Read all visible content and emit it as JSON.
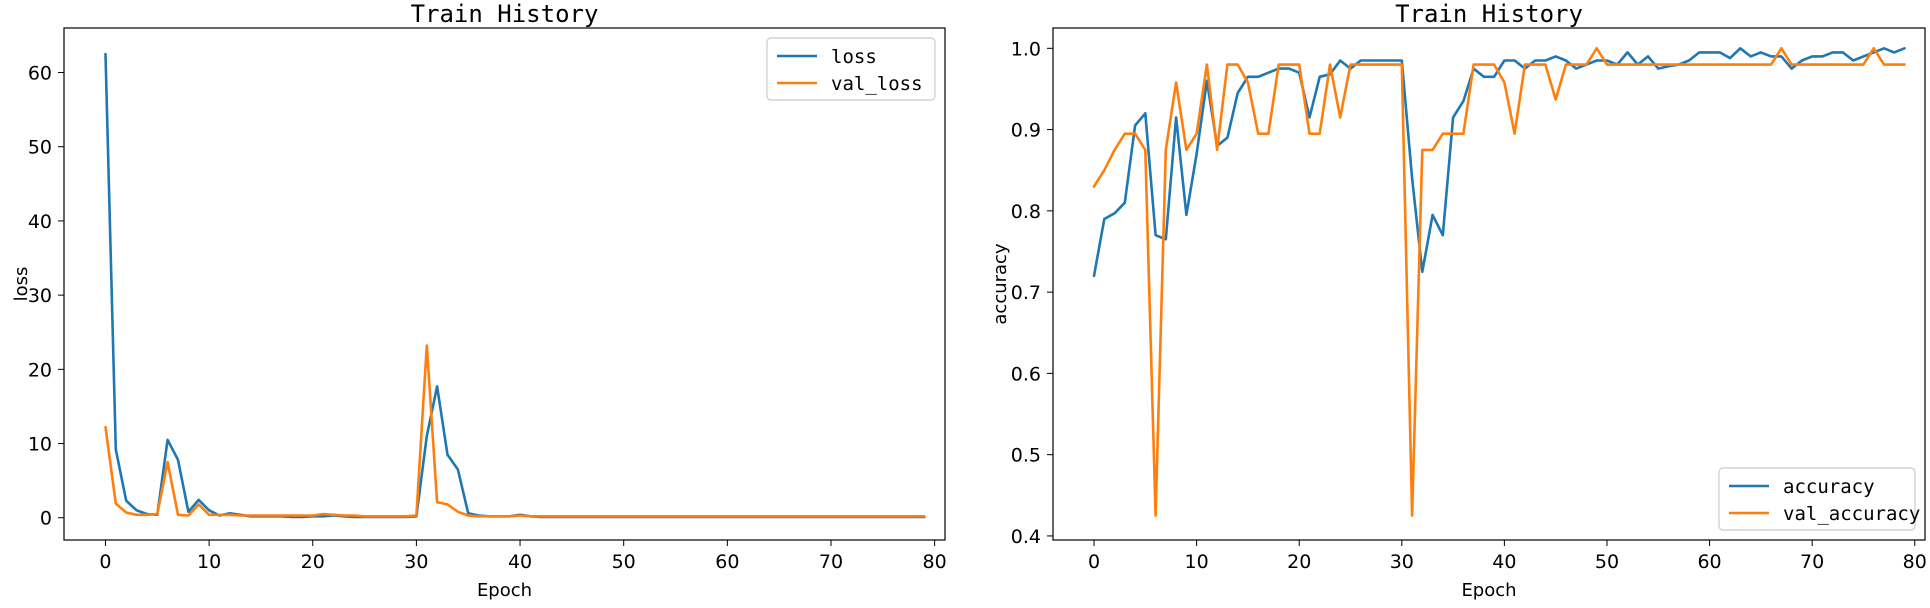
{
  "colors": {
    "series1": "#1f77b4",
    "series2": "#ff7f0e",
    "frame": "#000000"
  },
  "chart_data": [
    {
      "type": "line",
      "title": "Train History",
      "xlabel": "Epoch",
      "ylabel": "loss",
      "xlim": [
        -4,
        81
      ],
      "ylim": [
        -3,
        66
      ],
      "xticks": [
        0,
        10,
        20,
        30,
        40,
        50,
        60,
        70,
        80
      ],
      "yticks": [
        0,
        10,
        20,
        30,
        40,
        50,
        60
      ],
      "legend_position": "top-right",
      "series": [
        {
          "name": "loss",
          "color": "#1f77b4",
          "x": [
            0,
            1,
            2,
            3,
            4,
            5,
            6,
            7,
            8,
            9,
            10,
            11,
            12,
            13,
            14,
            15,
            16,
            17,
            18,
            19,
            20,
            21,
            22,
            23,
            24,
            25,
            26,
            27,
            28,
            29,
            30,
            31,
            32,
            33,
            34,
            35,
            36,
            37,
            38,
            39,
            40,
            41,
            42,
            43,
            44,
            45,
            46,
            47,
            48,
            49,
            50,
            51,
            52,
            53,
            54,
            55,
            56,
            57,
            58,
            59,
            60,
            61,
            62,
            63,
            64,
            65,
            66,
            67,
            68,
            69,
            70,
            71,
            72,
            73,
            74,
            75,
            76,
            77,
            78,
            79
          ],
          "values": [
            62.5,
            9.2,
            2.3,
            1.0,
            0.5,
            0.4,
            10.5,
            7.8,
            0.8,
            2.4,
            1.0,
            0.3,
            0.6,
            0.4,
            0.2,
            0.2,
            0.2,
            0.2,
            0.1,
            0.1,
            0.2,
            0.2,
            0.3,
            0.2,
            0.1,
            0.1,
            0.1,
            0.1,
            0.1,
            0.1,
            0.2,
            11.0,
            17.7,
            8.5,
            6.5,
            0.6,
            0.3,
            0.2,
            0.2,
            0.2,
            0.4,
            0.2,
            0.1,
            0.1,
            0.1,
            0.1,
            0.1,
            0.1,
            0.1,
            0.1,
            0.1,
            0.1,
            0.1,
            0.1,
            0.1,
            0.1,
            0.1,
            0.1,
            0.1,
            0.1,
            0.1,
            0.1,
            0.1,
            0.1,
            0.1,
            0.1,
            0.1,
            0.1,
            0.1,
            0.1,
            0.1,
            0.1,
            0.1,
            0.1,
            0.1,
            0.1,
            0.1,
            0.1,
            0.1,
            0.1
          ]
        },
        {
          "name": "val_loss",
          "color": "#ff7f0e",
          "x": [
            0,
            1,
            2,
            3,
            4,
            5,
            6,
            7,
            8,
            9,
            10,
            11,
            12,
            13,
            14,
            15,
            16,
            17,
            18,
            19,
            20,
            21,
            22,
            23,
            24,
            25,
            26,
            27,
            28,
            29,
            30,
            31,
            32,
            33,
            34,
            35,
            36,
            37,
            38,
            39,
            40,
            41,
            42,
            43,
            44,
            45,
            46,
            47,
            48,
            49,
            50,
            51,
            52,
            53,
            54,
            55,
            56,
            57,
            58,
            59,
            60,
            61,
            62,
            63,
            64,
            65,
            66,
            67,
            68,
            69,
            70,
            71,
            72,
            73,
            74,
            75,
            76,
            77,
            78,
            79
          ],
          "values": [
            12.2,
            1.9,
            0.7,
            0.4,
            0.4,
            0.5,
            7.5,
            0.4,
            0.3,
            1.8,
            0.4,
            0.4,
            0.4,
            0.3,
            0.3,
            0.3,
            0.3,
            0.3,
            0.3,
            0.3,
            0.3,
            0.5,
            0.4,
            0.3,
            0.3,
            0.2,
            0.2,
            0.2,
            0.2,
            0.2,
            0.3,
            23.2,
            2.1,
            1.8,
            0.8,
            0.3,
            0.2,
            0.2,
            0.2,
            0.2,
            0.3,
            0.2,
            0.2,
            0.2,
            0.2,
            0.2,
            0.2,
            0.2,
            0.2,
            0.2,
            0.2,
            0.2,
            0.2,
            0.2,
            0.2,
            0.2,
            0.2,
            0.2,
            0.2,
            0.2,
            0.2,
            0.2,
            0.2,
            0.2,
            0.2,
            0.2,
            0.2,
            0.2,
            0.2,
            0.2,
            0.2,
            0.2,
            0.2,
            0.2,
            0.2,
            0.2,
            0.2,
            0.2,
            0.2,
            0.2
          ]
        }
      ]
    },
    {
      "type": "line",
      "title": "Train History",
      "xlabel": "Epoch",
      "ylabel": "accuracy",
      "xlim": [
        -4,
        81
      ],
      "ylim": [
        0.395,
        1.025
      ],
      "xticks": [
        0,
        10,
        20,
        30,
        40,
        50,
        60,
        70,
        80
      ],
      "yticks": [
        0.4,
        0.5,
        0.6,
        0.7,
        0.8,
        0.9,
        1.0
      ],
      "legend_position": "bottom-right",
      "series": [
        {
          "name": "accuracy",
          "color": "#1f77b4",
          "x": [
            0,
            1,
            2,
            3,
            4,
            5,
            6,
            7,
            8,
            9,
            10,
            11,
            12,
            13,
            14,
            15,
            16,
            17,
            18,
            19,
            20,
            21,
            22,
            23,
            24,
            25,
            26,
            27,
            28,
            29,
            30,
            31,
            32,
            33,
            34,
            35,
            36,
            37,
            38,
            39,
            40,
            41,
            42,
            43,
            44,
            45,
            46,
            47,
            48,
            49,
            50,
            51,
            52,
            53,
            54,
            55,
            56,
            57,
            58,
            59,
            60,
            61,
            62,
            63,
            64,
            65,
            66,
            67,
            68,
            69,
            70,
            71,
            72,
            73,
            74,
            75,
            76,
            77,
            78,
            79
          ],
          "values": [
            0.72,
            0.79,
            0.797,
            0.81,
            0.905,
            0.92,
            0.77,
            0.765,
            0.915,
            0.795,
            0.87,
            0.96,
            0.88,
            0.89,
            0.945,
            0.965,
            0.965,
            0.97,
            0.975,
            0.975,
            0.97,
            0.915,
            0.965,
            0.968,
            0.985,
            0.975,
            0.985,
            0.985,
            0.985,
            0.985,
            0.985,
            0.84,
            0.725,
            0.795,
            0.77,
            0.915,
            0.935,
            0.975,
            0.965,
            0.965,
            0.985,
            0.985,
            0.975,
            0.985,
            0.985,
            0.99,
            0.985,
            0.975,
            0.98,
            0.985,
            0.985,
            0.98,
            0.995,
            0.98,
            0.99,
            0.975,
            0.978,
            0.98,
            0.985,
            0.995,
            0.995,
            0.995,
            0.988,
            1.0,
            0.99,
            0.995,
            0.99,
            0.99,
            0.975,
            0.985,
            0.99,
            0.99,
            0.995,
            0.995,
            0.985,
            0.99,
            0.995,
            1.0,
            0.995,
            1.0
          ]
        },
        {
          "name": "val_accuracy",
          "color": "#ff7f0e",
          "x": [
            0,
            1,
            2,
            3,
            4,
            5,
            6,
            7,
            8,
            9,
            10,
            11,
            12,
            13,
            14,
            15,
            16,
            17,
            18,
            19,
            20,
            21,
            22,
            23,
            24,
            25,
            26,
            27,
            28,
            29,
            30,
            31,
            32,
            33,
            34,
            35,
            36,
            37,
            38,
            39,
            40,
            41,
            42,
            43,
            44,
            45,
            46,
            47,
            48,
            49,
            50,
            51,
            52,
            53,
            54,
            55,
            56,
            57,
            58,
            59,
            60,
            61,
            62,
            63,
            64,
            65,
            66,
            67,
            68,
            69,
            70,
            71,
            72,
            73,
            74,
            75,
            76,
            77,
            78,
            79
          ],
          "values": [
            0.83,
            0.85,
            0.875,
            0.895,
            0.895,
            0.875,
            0.425,
            0.875,
            0.958,
            0.875,
            0.895,
            0.98,
            0.875,
            0.98,
            0.98,
            0.958,
            0.895,
            0.895,
            0.98,
            0.98,
            0.98,
            0.895,
            0.895,
            0.98,
            0.915,
            0.98,
            0.98,
            0.98,
            0.98,
            0.98,
            0.98,
            0.425,
            0.875,
            0.875,
            0.895,
            0.895,
            0.895,
            0.98,
            0.98,
            0.98,
            0.958,
            0.895,
            0.98,
            0.98,
            0.98,
            0.937,
            0.98,
            0.98,
            0.98,
            1.0,
            0.98,
            0.98,
            0.98,
            0.98,
            0.98,
            0.98,
            0.98,
            0.98,
            0.98,
            0.98,
            0.98,
            0.98,
            0.98,
            0.98,
            0.98,
            0.98,
            0.98,
            1.0,
            0.98,
            0.98,
            0.98,
            0.98,
            0.98,
            0.98,
            0.98,
            0.98,
            1.0,
            0.98,
            0.98,
            0.98
          ]
        }
      ]
    }
  ]
}
